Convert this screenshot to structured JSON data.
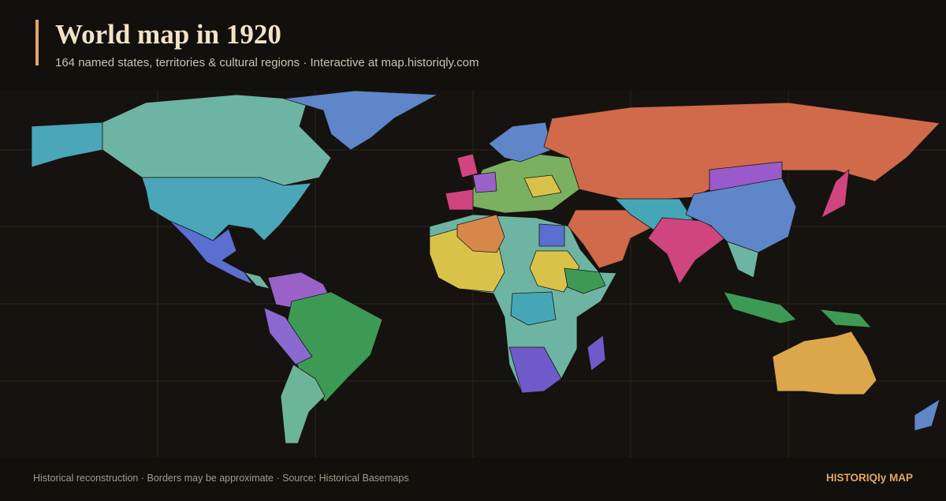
{
  "header": {
    "title": "World map in 1920",
    "subtitle": "164 named states, territories & cultural regions · Interactive at map.historiqly.com"
  },
  "footer": {
    "note": "Historical reconstruction · Borders may be approximate · Source: Historical Basemaps",
    "brand": "HISTORIQly MAP"
  }
}
